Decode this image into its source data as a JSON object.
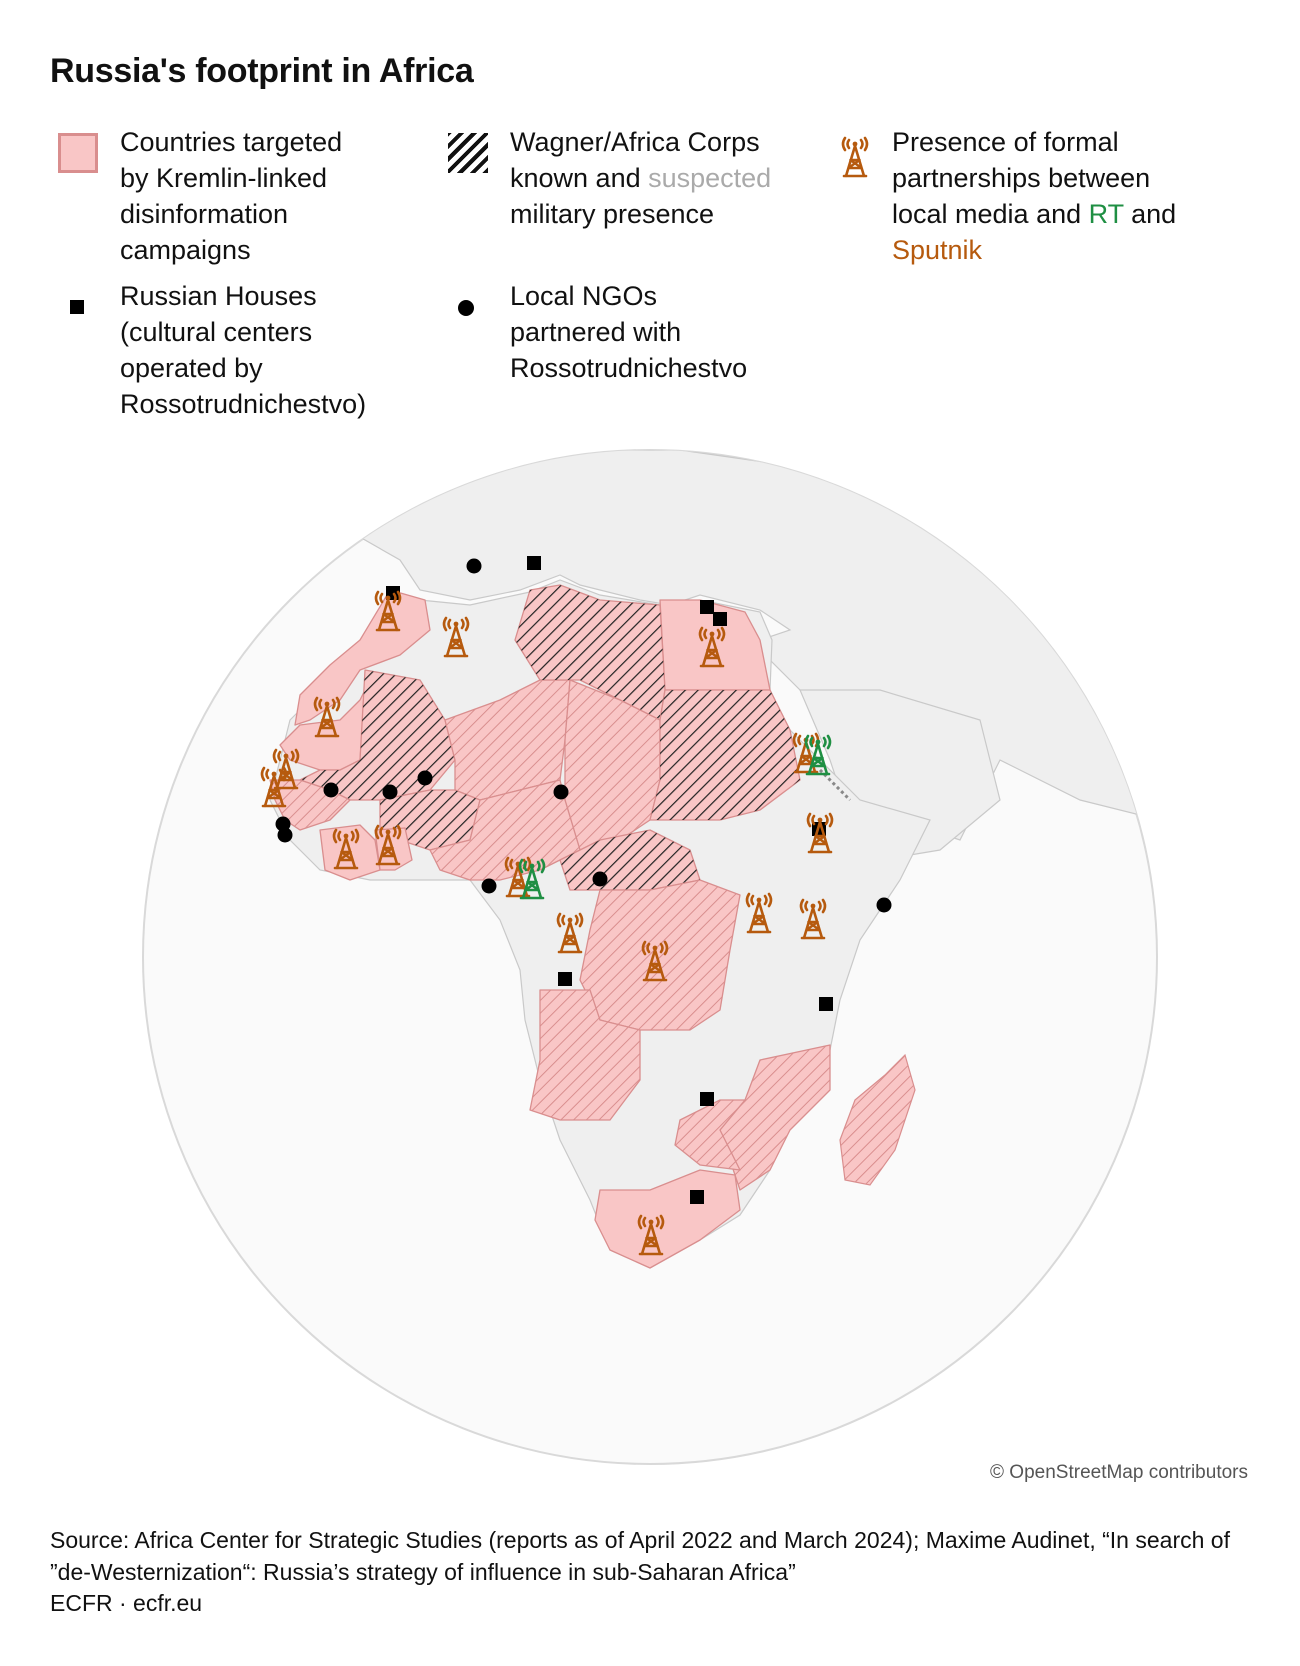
{
  "title": "Russia's footprint in Africa",
  "legend": {
    "disinfo": "Countries targeted by Kremlin-linked disinformation campaigns",
    "disinfo_lines": [
      "Countries targeted",
      "by Kremlin-linked",
      "disinformation",
      "campaigns"
    ],
    "wagner_line1": "Wagner/Africa Corps",
    "wagner_known": "known and ",
    "wagner_suspected": "suspected",
    "wagner_line3": "military presence",
    "media_lines": [
      "Presence of formal",
      "partnerships between"
    ],
    "media_line3_prefix": "local media and ",
    "media_rt": "RT",
    "media_and": " and",
    "media_sputnik": "Sputnik",
    "houses_lines": [
      "Russian Houses",
      "(cultural centers",
      "operated by",
      "Rossotrudnichestvo)"
    ],
    "ngo_lines": [
      "Local NGOs",
      "partnered with",
      "Rossotrudnichestvo"
    ]
  },
  "colors": {
    "pink_fill": "#f9c6c6",
    "pink_border": "#d98e8e",
    "land_grey": "#efefef",
    "hatch": "#111111",
    "rt_green": "#1f8f43",
    "sputnik_orange": "#b65a0e",
    "suspected_grey": "#aaaaaa"
  },
  "icons": [
    "square-marker-icon",
    "dot-marker-icon",
    "radio-tower-icon"
  ],
  "attribution": "© OpenStreetMap contributors",
  "source": "Source: Africa Center for Strategic Studies (reports as of April 2022 and March 2024); Maxime Audinet, “In search of ”de-Westernization“: Russia’s strategy of influence in sub-Saharan Africa”",
  "footer": "ECFR · ecfr.eu"
}
